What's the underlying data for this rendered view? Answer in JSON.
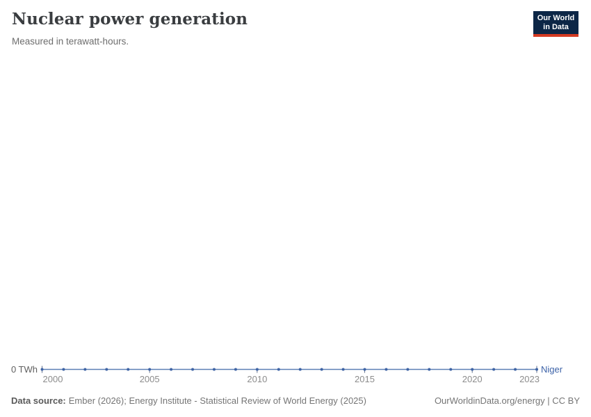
{
  "header": {
    "title": "Nuclear power generation",
    "subtitle": "Measured in terawatt-hours."
  },
  "logo": {
    "line1": "Our World",
    "line2": "in Data",
    "background": "#0c2646",
    "bar_color": "#d43a22"
  },
  "chart_data": {
    "type": "line",
    "title": "Nuclear power generation",
    "subtitle": "Measured in terawatt-hours.",
    "unit": "TWh",
    "x": [
      2000,
      2001,
      2002,
      2003,
      2004,
      2005,
      2006,
      2007,
      2008,
      2009,
      2010,
      2011,
      2012,
      2013,
      2014,
      2015,
      2016,
      2017,
      2018,
      2019,
      2020,
      2021,
      2022,
      2023
    ],
    "series": [
      {
        "name": "Niger",
        "values": [
          0,
          0,
          0,
          0,
          0,
          0,
          0,
          0,
          0,
          0,
          0,
          0,
          0,
          0,
          0,
          0,
          0,
          0,
          0,
          0,
          0,
          0,
          0,
          0
        ]
      }
    ],
    "x_axis": {
      "ticks": [
        2000,
        2005,
        2010,
        2015,
        2020,
        2023
      ],
      "labels": [
        "2000",
        "2005",
        "2010",
        "2015",
        "2020",
        "2023"
      ]
    },
    "y_axis": {
      "ticks": [
        0
      ],
      "labels": [
        "0 TWh"
      ]
    },
    "ylim": [
      0,
      0
    ],
    "grid": false,
    "legend_position": "right-of-line-end",
    "colors": {
      "line": "#5b7fb5",
      "marker": "#3e63a4",
      "tick": "#5f6f8c",
      "axis_label": "#8c8c8c",
      "y_label": "#5f5f5f",
      "entity": "#3d63a8"
    }
  },
  "footer": {
    "source_label": "Data source:",
    "source_text": "Ember (2026); Energy Institute - Statistical Review of World Energy (2025)",
    "credit": "OurWorldinData.org/energy | CC BY"
  }
}
